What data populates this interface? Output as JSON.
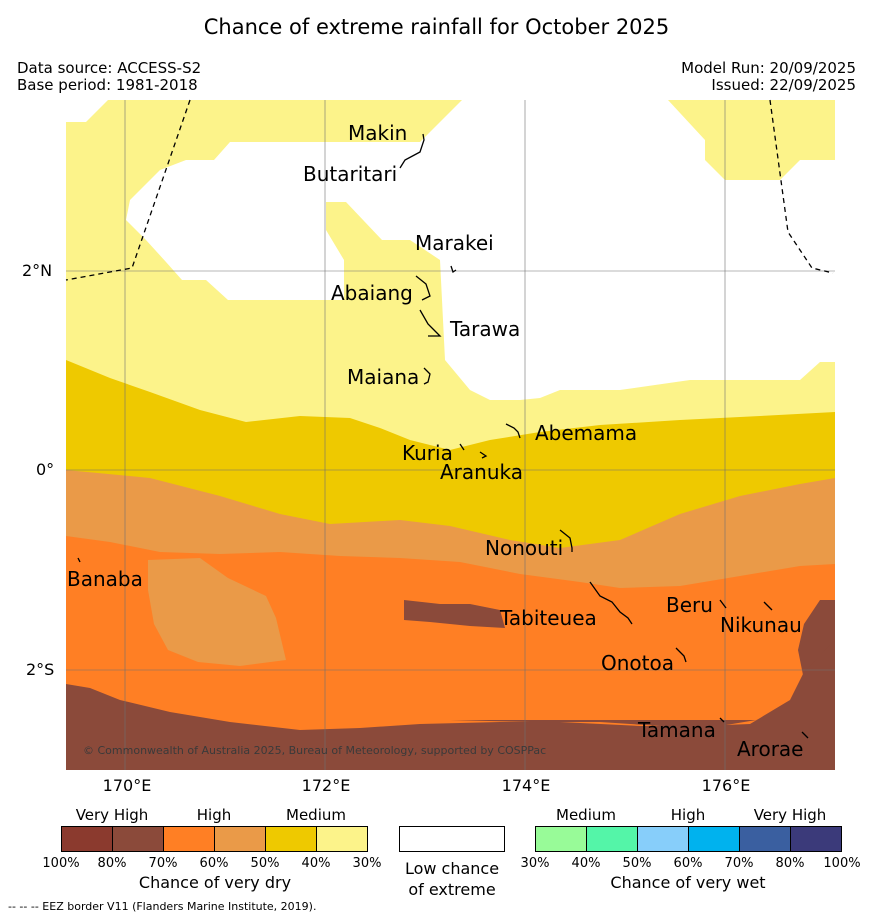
{
  "title": "Chance of extreme rainfall for October 2025",
  "meta": {
    "data_source": "Data source: ACCESS-S2",
    "base_period": "Base period: 1981-2018",
    "model_run": "Model Run: 20/09/2025",
    "issued": "Issued: 22/09/2025"
  },
  "axes": {
    "x_ticks": [
      "170°E",
      "172°E",
      "174°E",
      "176°E"
    ],
    "y_ticks": [
      "2°N",
      "0°",
      "2°S"
    ]
  },
  "places": [
    "Makin",
    "Butaritari",
    "Marakei",
    "Abaiang",
    "Tarawa",
    "Maiana",
    "Abemama",
    "Kuria",
    "Aranuka",
    "Nonouti",
    "Banaba",
    "Beru",
    "Tabiteuea",
    "Nikunau",
    "Onotoa",
    "Tamana",
    "Arorae"
  ],
  "copyright": "© Commonwealth of Australia 2025, Bureau of Meteorology, supported by COSPPac",
  "legend": {
    "dry": {
      "headers": [
        "Very High",
        "High",
        "Medium"
      ],
      "percents": [
        "100%",
        "80%",
        "70%",
        "60%",
        "50%",
        "40%",
        "30%"
      ],
      "colors": [
        "#8b3a2e",
        "#8b4a3a",
        "#ff7f24",
        "#ea9a48",
        "#eec900",
        "#fcf38a"
      ],
      "caption": "Chance of very dry"
    },
    "low": {
      "caption_line1": "Low chance",
      "caption_line2": "of extreme",
      "color": "#ffffff"
    },
    "wet": {
      "headers": [
        "Medium",
        "High",
        "Very High"
      ],
      "percents": [
        "30%",
        "40%",
        "50%",
        "60%",
        "70%",
        "80%",
        "100%"
      ],
      "colors": [
        "#98fb98",
        "#54f5a8",
        "#87cefa",
        "#00b2ee",
        "#3a5fa0",
        "#3b3a7a"
      ],
      "caption": "Chance of very wet"
    }
  },
  "footnote": "--  --  -- EEZ border V11 (Flanders Marine Institute, 2019)."
}
